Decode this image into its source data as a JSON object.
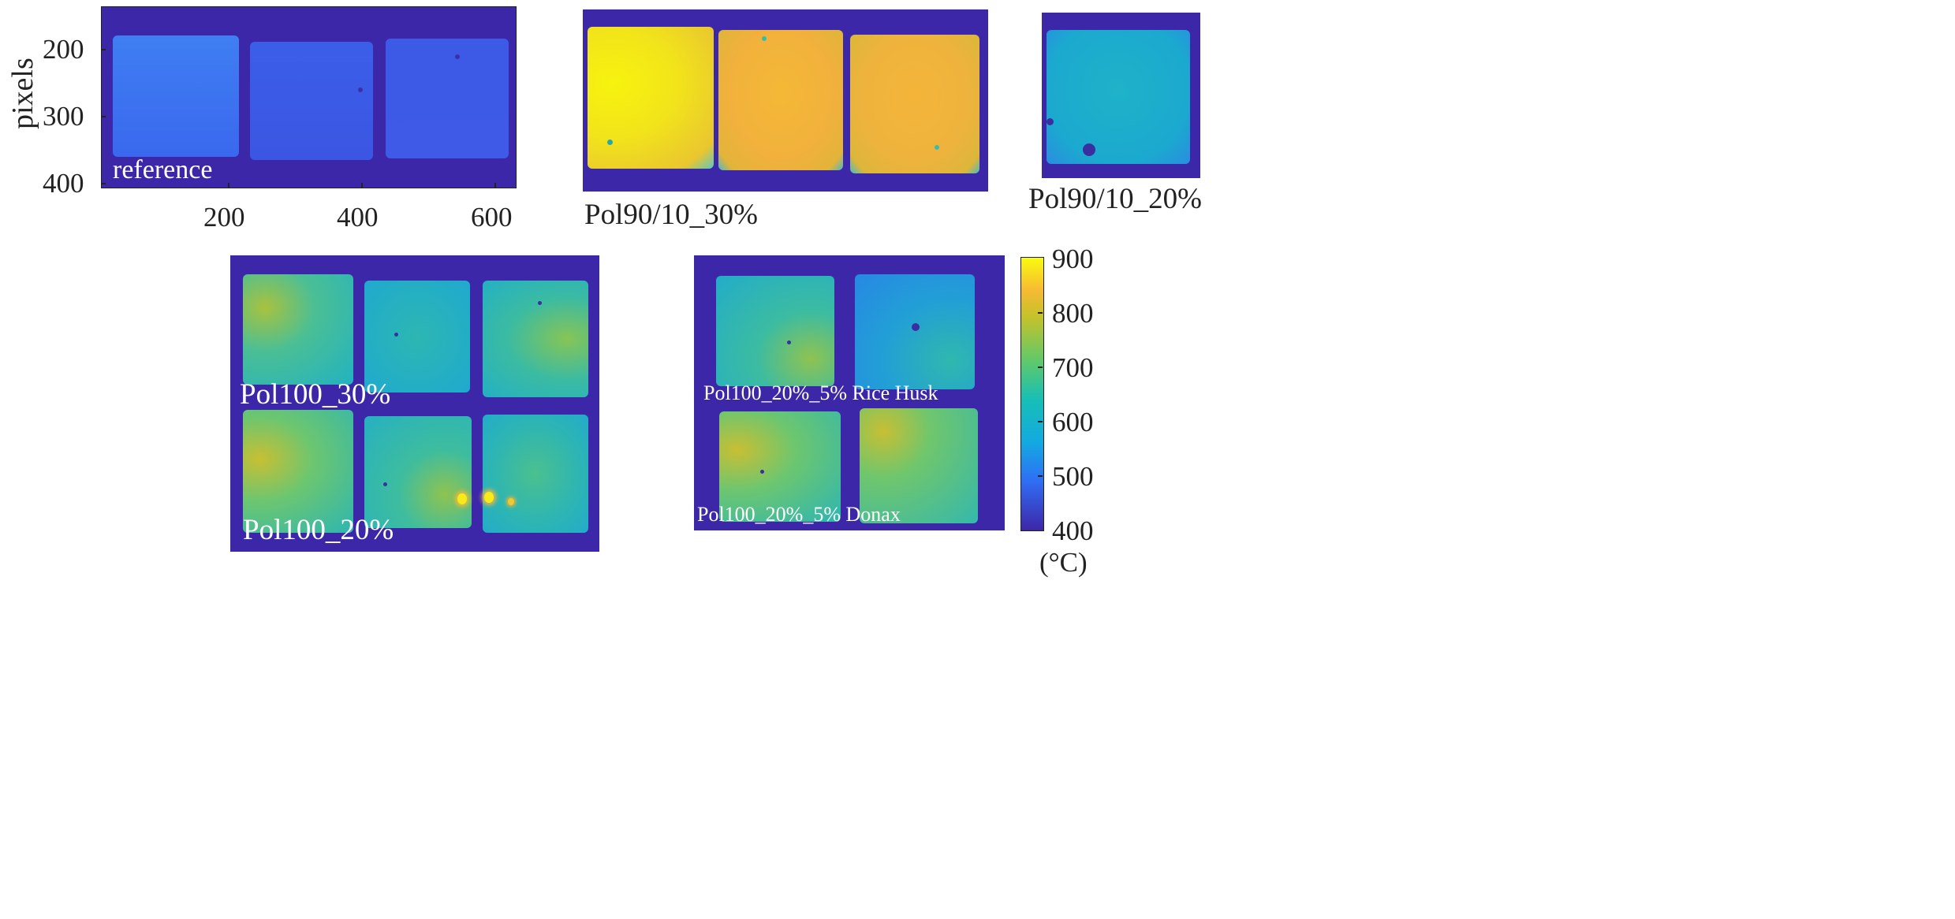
{
  "axes": {
    "ylabel": "pixels",
    "yticks": [
      "200",
      "300",
      "400"
    ],
    "xticks": [
      "200",
      "400",
      "600"
    ]
  },
  "panels": {
    "reference": {
      "label": "reference"
    },
    "pol90_30": {
      "label": "Pol90/10_30%"
    },
    "pol90_20": {
      "label": "Pol90/10_20%"
    },
    "pol100": {
      "label_top": "Pol100_30%",
      "label_bottom": "Pol100_20%"
    },
    "pol100_5": {
      "label_top": "Pol100_20%_5% Rice Husk",
      "label_bottom": "Pol100_20%_5% Donax"
    }
  },
  "colorbar": {
    "ticks": [
      "900",
      "800",
      "700",
      "600",
      "500",
      "400"
    ],
    "unit": "(°C)",
    "range": [
      400,
      900
    ]
  },
  "colors": {
    "background": "#3b27a8",
    "low": "#3e26a8",
    "high": "#f9fb0e"
  }
}
